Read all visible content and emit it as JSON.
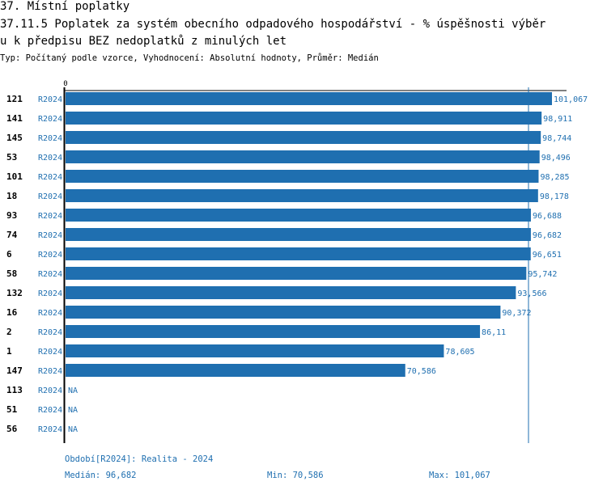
{
  "header": {
    "section_title": "37. Místní poplatky",
    "indicator_title_line1": "37.11.5 Poplatek za systém obecního odpadového hospodářství  - % úspěšnosti výběr",
    "indicator_title_line2": "u k předpisu BEZ nedoplatků z minulých let",
    "subtitle": "Typ: Počítaný podle vzorce, Vyhodnocení: Absolutní hodnoty, Průměr: Medián"
  },
  "colors": {
    "bar": "#1f6fb0",
    "label_blue": "#1f6fb0",
    "axis": "#000000",
    "median_line": "#1f6fb0"
  },
  "chart_data": {
    "type": "bar",
    "orientation": "horizontal",
    "axis_zero_label": "0",
    "xlim": [
      0,
      101.067
    ],
    "median": 96.682,
    "rows": [
      {
        "id": "121",
        "period": "R2024",
        "value": 101.067,
        "label": "101,067"
      },
      {
        "id": "141",
        "period": "R2024",
        "value": 98.911,
        "label": "98,911"
      },
      {
        "id": "145",
        "period": "R2024",
        "value": 98.744,
        "label": "98,744"
      },
      {
        "id": "53",
        "period": "R2024",
        "value": 98.496,
        "label": "98,496"
      },
      {
        "id": "101",
        "period": "R2024",
        "value": 98.285,
        "label": "98,285"
      },
      {
        "id": "18",
        "period": "R2024",
        "value": 98.178,
        "label": "98,178"
      },
      {
        "id": "93",
        "period": "R2024",
        "value": 96.688,
        "label": "96,688"
      },
      {
        "id": "74",
        "period": "R2024",
        "value": 96.682,
        "label": "96,682"
      },
      {
        "id": "6",
        "period": "R2024",
        "value": 96.651,
        "label": "96,651"
      },
      {
        "id": "58",
        "period": "R2024",
        "value": 95.742,
        "label": "95,742"
      },
      {
        "id": "132",
        "period": "R2024",
        "value": 93.566,
        "label": "93,566"
      },
      {
        "id": "16",
        "period": "R2024",
        "value": 90.372,
        "label": "90,372"
      },
      {
        "id": "2",
        "period": "R2024",
        "value": 86.11,
        "label": "86,11"
      },
      {
        "id": "1",
        "period": "R2024",
        "value": 78.605,
        "label": "78,605"
      },
      {
        "id": "147",
        "period": "R2024",
        "value": 70.586,
        "label": "70,586"
      },
      {
        "id": "113",
        "period": "R2024",
        "value": null,
        "label": "NA"
      },
      {
        "id": "51",
        "period": "R2024",
        "value": null,
        "label": "NA"
      },
      {
        "id": "56",
        "period": "R2024",
        "value": null,
        "label": "NA"
      }
    ]
  },
  "footer": {
    "period_legend": "Období[R2024]: Realita - 2024",
    "median": "Medián: 96,682",
    "min": "Min: 70,586",
    "max": "Max: 101,067"
  }
}
